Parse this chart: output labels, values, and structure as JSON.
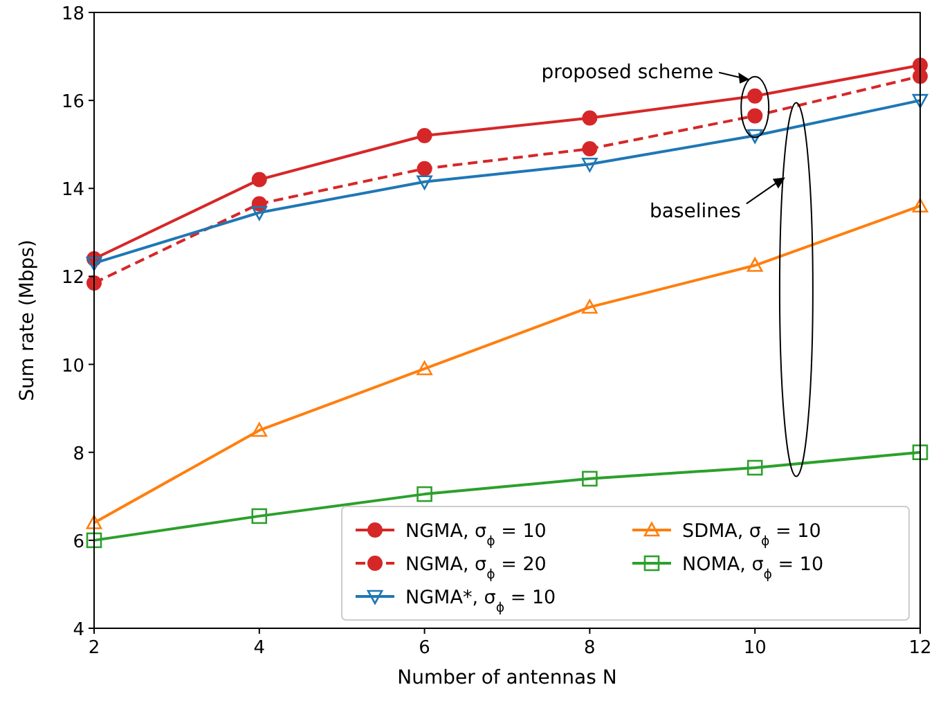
{
  "chart_data": {
    "type": "line",
    "xlabel": "Number of antennas N",
    "ylabel": "Sum rate (Mbps)",
    "x": [
      2,
      4,
      6,
      8,
      10,
      12
    ],
    "xlim": [
      2,
      12
    ],
    "xticks": [
      2,
      4,
      6,
      8,
      10,
      12
    ],
    "ylim": [
      4,
      18
    ],
    "yticks": [
      4,
      6,
      8,
      10,
      12,
      14,
      16,
      18
    ],
    "grid": false,
    "legend": "bottom right",
    "series": [
      {
        "name": "NGMA, σ$_{ϕ}$ = 10",
        "color": "#d62728",
        "values": [
          12.4,
          14.2,
          15.2,
          15.6,
          16.1,
          16.8
        ],
        "marker": "circle",
        "line_style": "solid"
      },
      {
        "name": "NGMA, σ$_{ϕ}$ = 20",
        "color": "#d62728",
        "values": [
          11.85,
          13.65,
          14.45,
          14.9,
          15.65,
          16.55
        ],
        "marker": "circle",
        "line_style": "dashed"
      },
      {
        "name": "NGMA*, σ$_{ϕ}$ = 10",
        "color": "#1f77b4",
        "values": [
          12.3,
          13.45,
          14.15,
          14.55,
          15.2,
          16.0
        ],
        "marker": "triangle",
        "line_style": "solid"
      },
      {
        "name": "SDMA, σ$_{ϕ}$ = 10",
        "color": "#ff7f0e",
        "values": [
          6.4,
          8.5,
          9.9,
          11.3,
          12.25,
          13.6
        ],
        "marker": "triangle-up",
        "line_style": "solid"
      },
      {
        "name": "NOMA, σ$_{ϕ}$ = 10",
        "color": "#2ca02c",
        "values": [
          6.0,
          6.55,
          7.05,
          7.4,
          7.65,
          8.0
        ],
        "marker": "square",
        "line_style": "solid"
      }
    ],
    "annotations": [
      {
        "text": "proposed scheme",
        "x": 10,
        "y": 16.1
      },
      "baselines"
    ]
  }
}
